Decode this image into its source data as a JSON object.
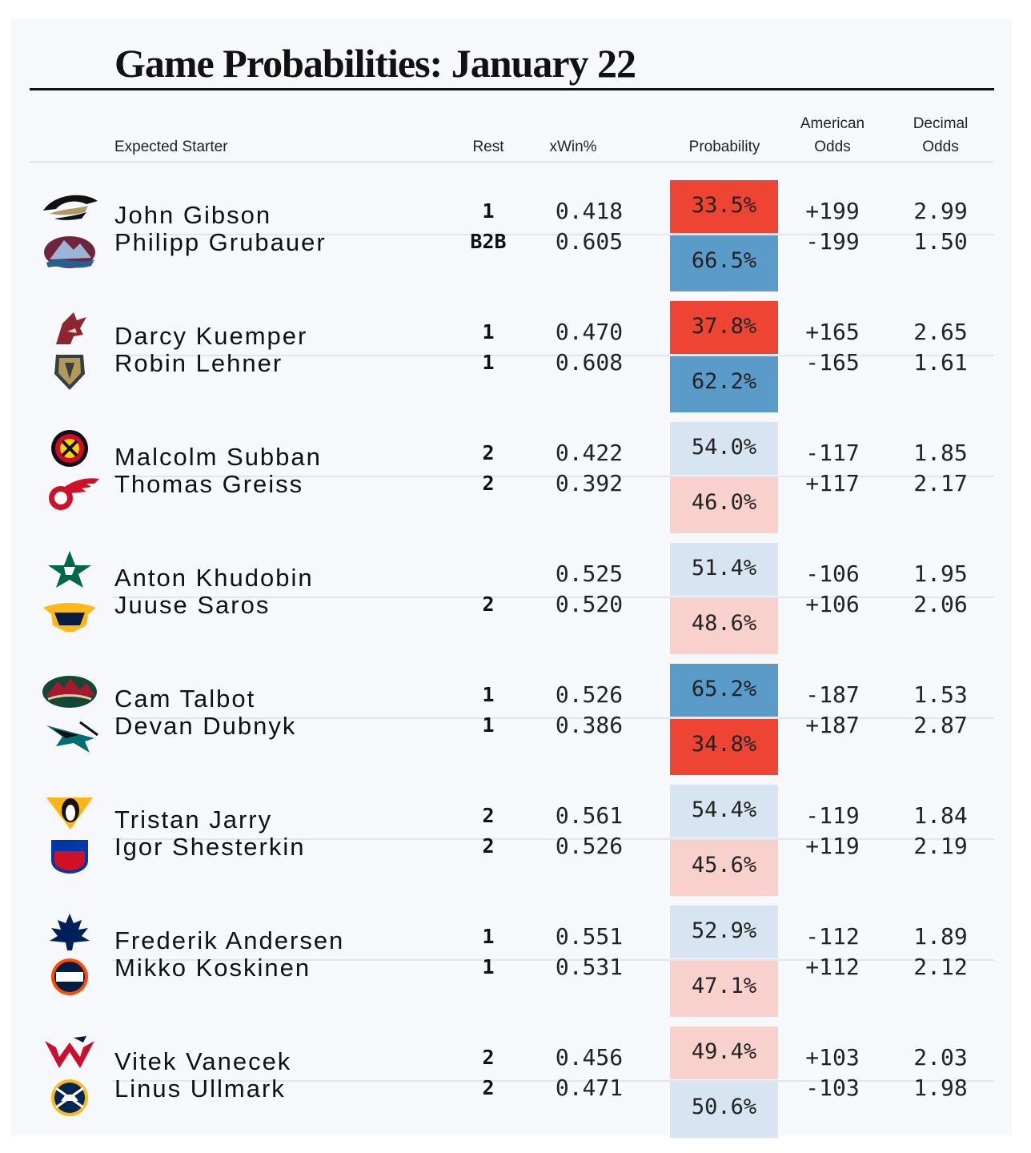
{
  "title": "Game Probabilities: January 22",
  "headers": {
    "starter": "Expected Starter",
    "rest": "Rest",
    "xwin": "xWin%",
    "probability": "Probability",
    "american1": "American",
    "american2": "Odds",
    "decimal1": "Decimal",
    "decimal2": "Odds"
  },
  "colors": {
    "strong_red": "#ee4433",
    "mid_red": "#f37668",
    "light_red": "#f8d0cc",
    "strong_blue": "#5b9bc9",
    "mid_blue": "#88b6da",
    "light_blue": "#d6e5f1"
  },
  "chart_data": {
    "type": "table",
    "columns": [
      "Expected Starter",
      "Rest",
      "xWin%",
      "Probability",
      "American Odds",
      "Decimal Odds"
    ],
    "rows": [
      {
        "team_logo": "ducks-logo-icon",
        "starter": "John Gibson",
        "rest": "1",
        "xwin": "0.418",
        "prob_label": "33.5%",
        "probability": 33.5,
        "american": "+199",
        "decimal": "2.99"
      },
      {
        "team_logo": "avalanche-logo-icon",
        "starter": "Philipp Grubauer",
        "rest": "B2B",
        "xwin": "0.605",
        "prob_label": "66.5%",
        "probability": 66.5,
        "american": "-199",
        "decimal": "1.50"
      },
      {
        "team_logo": "coyotes-logo-icon",
        "starter": "Darcy Kuemper",
        "rest": "1",
        "xwin": "0.470",
        "prob_label": "37.8%",
        "probability": 37.8,
        "american": "+165",
        "decimal": "2.65"
      },
      {
        "team_logo": "golden-knights-logo-icon",
        "starter": "Robin Lehner",
        "rest": "1",
        "xwin": "0.608",
        "prob_label": "62.2%",
        "probability": 62.2,
        "american": "-165",
        "decimal": "1.61"
      },
      {
        "team_logo": "blackhawks-logo-icon",
        "starter": "Malcolm Subban",
        "rest": "2",
        "xwin": "0.422",
        "prob_label": "54.0%",
        "probability": 54.0,
        "american": "-117",
        "decimal": "1.85"
      },
      {
        "team_logo": "red-wings-logo-icon",
        "starter": "Thomas Greiss",
        "rest": "2",
        "xwin": "0.392",
        "prob_label": "46.0%",
        "probability": 46.0,
        "american": "+117",
        "decimal": "2.17"
      },
      {
        "team_logo": "stars-logo-icon",
        "starter": "Anton Khudobin",
        "rest": "",
        "xwin": "0.525",
        "prob_label": "51.4%",
        "probability": 51.4,
        "american": "-106",
        "decimal": "1.95"
      },
      {
        "team_logo": "predators-logo-icon",
        "starter": "Juuse Saros",
        "rest": "2",
        "xwin": "0.520",
        "prob_label": "48.6%",
        "probability": 48.6,
        "american": "+106",
        "decimal": "2.06"
      },
      {
        "team_logo": "wild-logo-icon",
        "starter": "Cam Talbot",
        "rest": "1",
        "xwin": "0.526",
        "prob_label": "65.2%",
        "probability": 65.2,
        "american": "-187",
        "decimal": "1.53"
      },
      {
        "team_logo": "sharks-logo-icon",
        "starter": "Devan Dubnyk",
        "rest": "1",
        "xwin": "0.386",
        "prob_label": "34.8%",
        "probability": 34.8,
        "american": "+187",
        "decimal": "2.87"
      },
      {
        "team_logo": "penguins-logo-icon",
        "starter": "Tristan Jarry",
        "rest": "2",
        "xwin": "0.561",
        "prob_label": "54.4%",
        "probability": 54.4,
        "american": "-119",
        "decimal": "1.84"
      },
      {
        "team_logo": "rangers-logo-icon",
        "starter": "Igor Shesterkin",
        "rest": "2",
        "xwin": "0.526",
        "prob_label": "45.6%",
        "probability": 45.6,
        "american": "+119",
        "decimal": "2.19"
      },
      {
        "team_logo": "maple-leafs-logo-icon",
        "starter": "Frederik Andersen",
        "rest": "1",
        "xwin": "0.551",
        "prob_label": "52.9%",
        "probability": 52.9,
        "american": "-112",
        "decimal": "1.89"
      },
      {
        "team_logo": "oilers-logo-icon",
        "starter": "Mikko Koskinen",
        "rest": "1",
        "xwin": "0.531",
        "prob_label": "47.1%",
        "probability": 47.1,
        "american": "+112",
        "decimal": "2.12"
      },
      {
        "team_logo": "capitals-logo-icon",
        "starter": "Vitek Vanecek",
        "rest": "2",
        "xwin": "0.456",
        "prob_label": "49.4%",
        "probability": 49.4,
        "american": "+103",
        "decimal": "2.03"
      },
      {
        "team_logo": "sabres-logo-icon",
        "starter": "Linus Ullmark",
        "rest": "2",
        "xwin": "0.471",
        "prob_label": "50.6%",
        "probability": 50.6,
        "american": "-103",
        "decimal": "1.98"
      }
    ]
  }
}
